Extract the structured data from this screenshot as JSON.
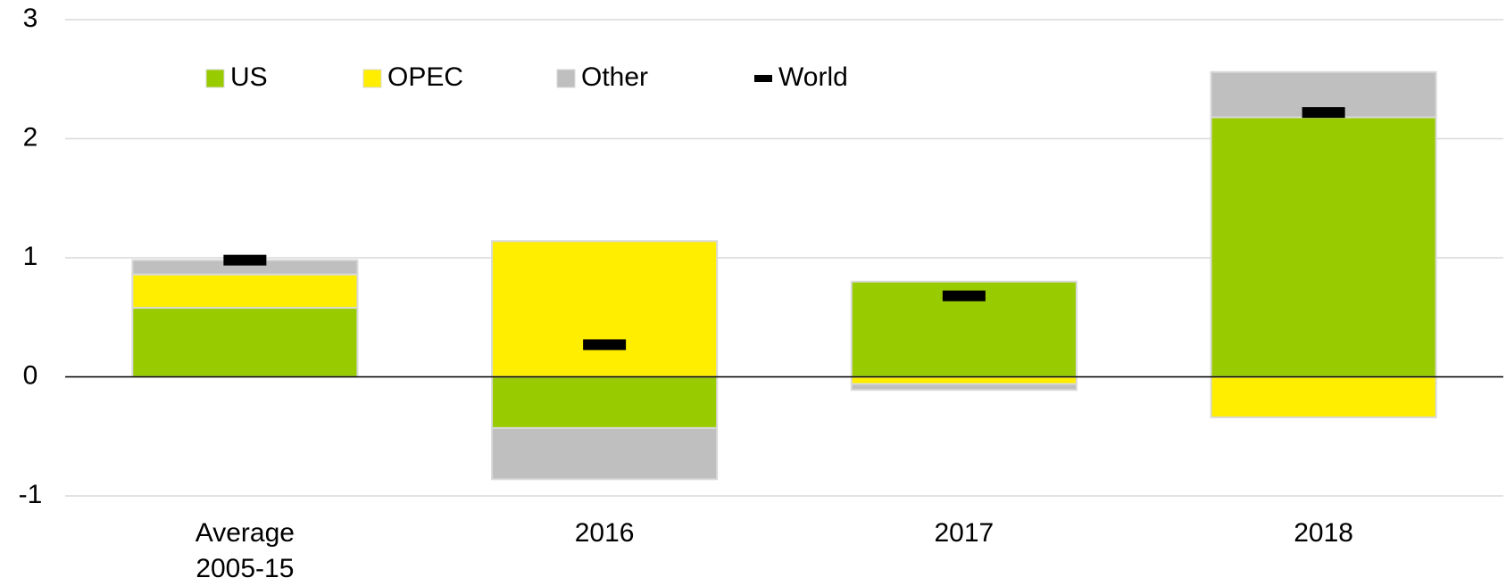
{
  "chart_data": {
    "type": "bar",
    "stacked": true,
    "categories": [
      "Average 2005-15",
      "2016",
      "2017",
      "2018"
    ],
    "series": [
      {
        "name": "US",
        "color": "#99cc00",
        "values": [
          0.58,
          -0.43,
          0.8,
          2.18
        ]
      },
      {
        "name": "OPEC",
        "color": "#ffee00",
        "values": [
          0.28,
          1.14,
          -0.06,
          -0.34
        ]
      },
      {
        "name": "Other",
        "color": "#bfbfbf",
        "values": [
          0.12,
          -0.43,
          -0.05,
          0.38
        ]
      }
    ],
    "markers": {
      "name": "World",
      "color": "#000000",
      "values": [
        0.98,
        0.27,
        0.68,
        2.22
      ]
    },
    "ylim": [
      -1,
      3
    ],
    "yticks": [
      -1,
      0,
      1,
      2,
      3
    ],
    "grid": true
  }
}
